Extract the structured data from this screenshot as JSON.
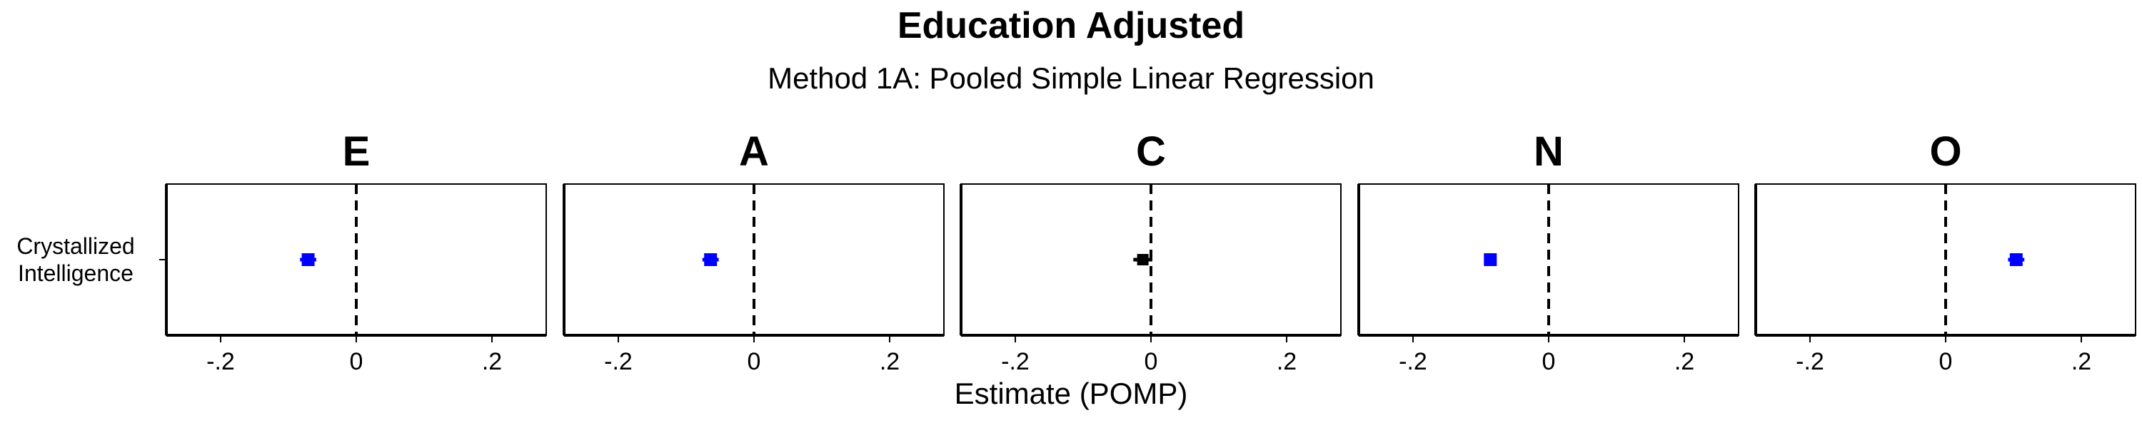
{
  "chart_data": {
    "type": "scatter",
    "title": "Education Adjusted",
    "subtitle": "Method 1A: Pooled Simple Linear Regression",
    "xlabel": "Estimate (POMP)",
    "ylabel": "",
    "y_category": "Crystallized Intelligence",
    "xlim": [
      -0.28,
      0.28
    ],
    "x_ticks": [
      {
        "value": -0.2,
        "label": "-.2"
      },
      {
        "value": 0,
        "label": "0"
      },
      {
        "value": 0.2,
        "label": ".2"
      }
    ],
    "reference_line": 0,
    "grid": false,
    "significant_color": "#0000ff",
    "nonsignificant_color": "#000000",
    "panels": [
      {
        "name": "E",
        "estimate": -0.071,
        "ci_low": -0.083,
        "ci_high": -0.059,
        "significant": true
      },
      {
        "name": "A",
        "estimate": -0.064,
        "ci_low": -0.076,
        "ci_high": -0.052,
        "significant": true
      },
      {
        "name": "C",
        "estimate": -0.012,
        "ci_low": -0.026,
        "ci_high": 0.002,
        "significant": false
      },
      {
        "name": "N",
        "estimate": -0.086,
        "ci_low": -0.094,
        "ci_high": -0.078,
        "significant": true
      },
      {
        "name": "O",
        "estimate": 0.104,
        "ci_low": 0.092,
        "ci_high": 0.116,
        "significant": true
      }
    ]
  }
}
